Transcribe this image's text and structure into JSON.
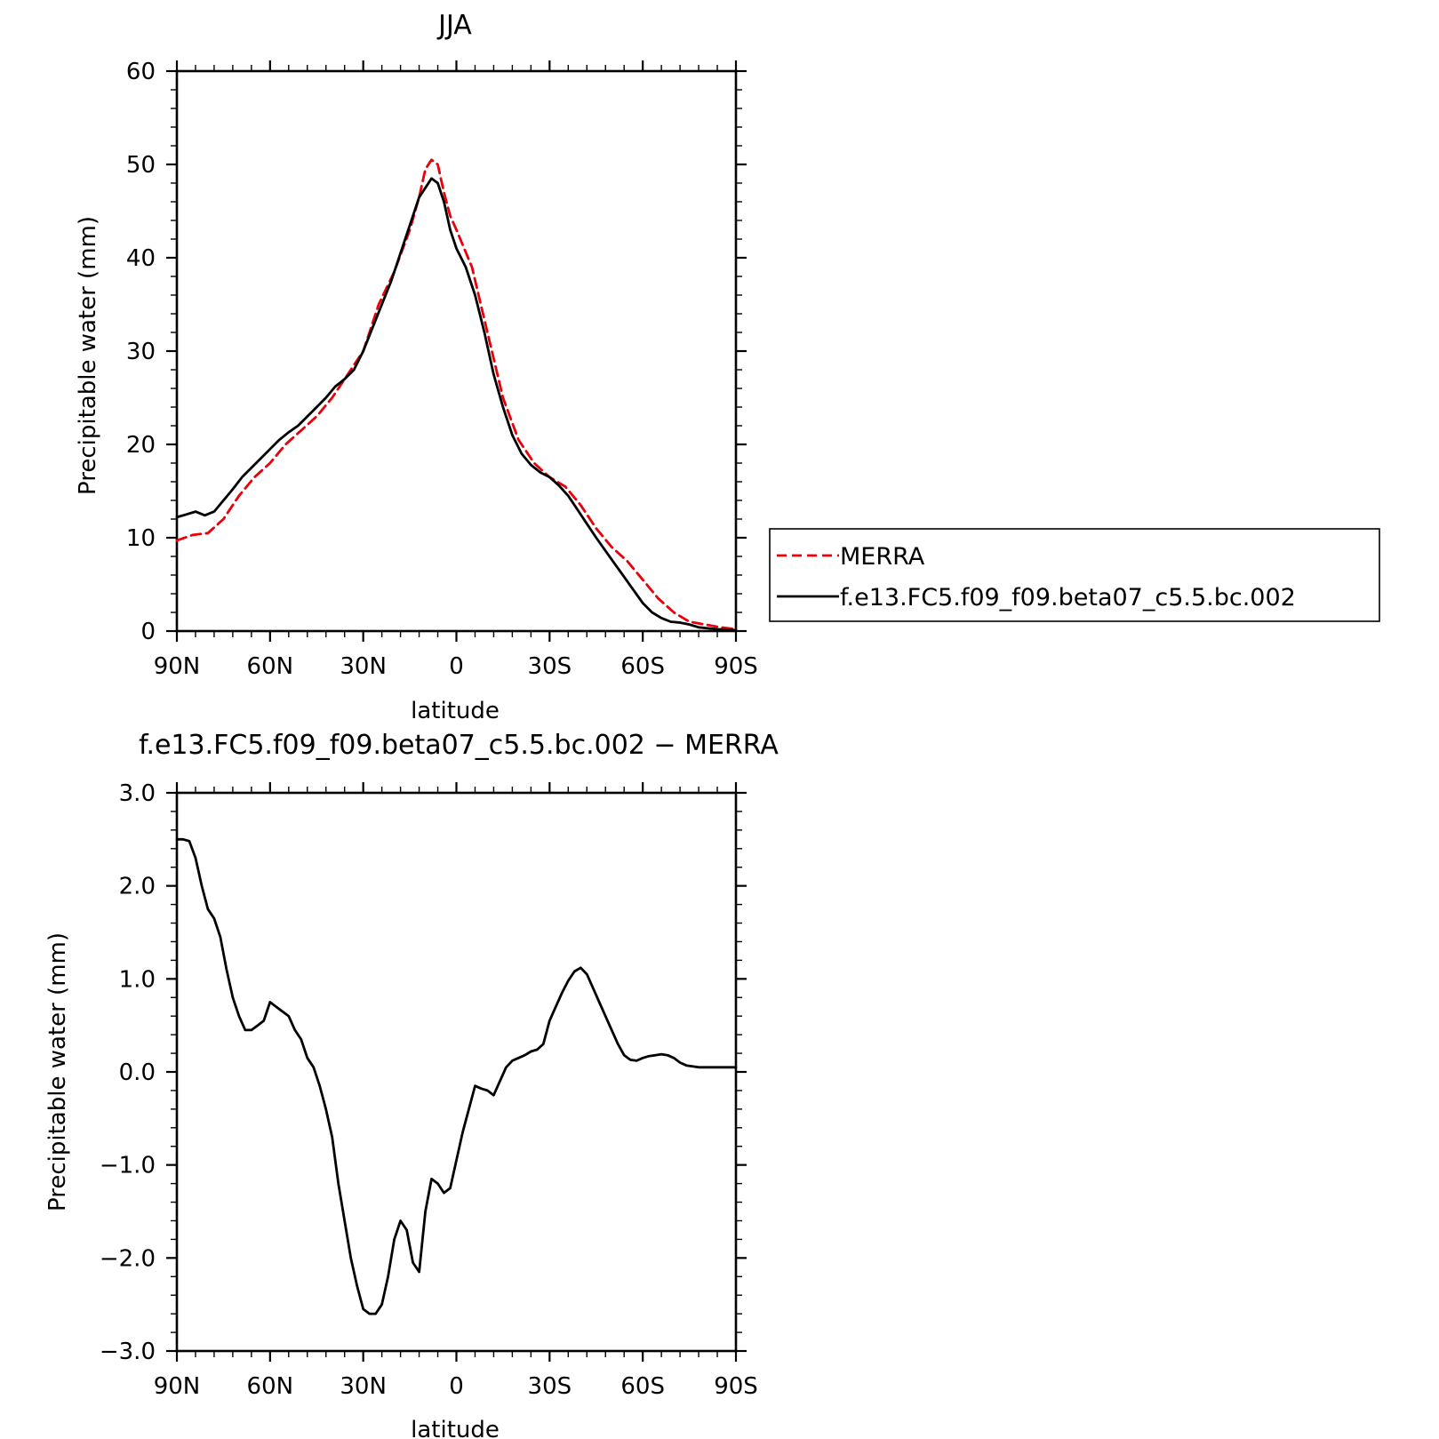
{
  "chart_data": [
    {
      "type": "line",
      "title": "JJA",
      "xlabel": "latitude",
      "ylabel": "Precipitable water (mm)",
      "xlim": [
        90,
        -90
      ],
      "ylim": [
        0,
        60
      ],
      "xticks": [
        90,
        60,
        30,
        0,
        -30,
        -60,
        -90
      ],
      "xtick_labels": [
        "90N",
        "60N",
        "30N",
        "0",
        "30S",
        "60S",
        "90S"
      ],
      "yticks": [
        0,
        10,
        20,
        30,
        40,
        50,
        60
      ],
      "ytick_labels": [
        "0",
        "10",
        "20",
        "30",
        "40",
        "50",
        "60"
      ],
      "grid": false,
      "legend": "right",
      "series": [
        {
          "name": "MERRA",
          "color": "#e8000b",
          "style": "dashed",
          "x": [
            90,
            85,
            80,
            75,
            70,
            65,
            60,
            55,
            50,
            45,
            40,
            35,
            30,
            25,
            20,
            15,
            12,
            10,
            8,
            6,
            4,
            2,
            0,
            -5,
            -10,
            -15,
            -20,
            -25,
            -30,
            -35,
            -40,
            -45,
            -50,
            -55,
            -60,
            -65,
            -70,
            -75,
            -80,
            -85,
            -90
          ],
          "y": [
            9.7,
            10.3,
            10.5,
            12.0,
            14.5,
            16.5,
            18.0,
            20.0,
            21.5,
            23.0,
            25.0,
            27.5,
            30.0,
            35.0,
            38.5,
            43.0,
            46.5,
            49.5,
            50.5,
            50.0,
            47.0,
            44.5,
            43.0,
            39.0,
            32.0,
            25.0,
            20.5,
            18.0,
            16.5,
            15.5,
            13.5,
            11.0,
            9.0,
            7.5,
            5.5,
            3.5,
            2.0,
            1.0,
            0.7,
            0.4,
            0.2
          ]
        },
        {
          "name": "f.e13.FC5.f09_f09.beta07_c5.5.bc.002",
          "color": "#000000",
          "style": "solid",
          "x": [
            90,
            87,
            84,
            81,
            78,
            75,
            72,
            69,
            66,
            63,
            60,
            57,
            54,
            51,
            48,
            45,
            42,
            39,
            36,
            33,
            30,
            27,
            24,
            21,
            18,
            15,
            12,
            10,
            8,
            6,
            4,
            2,
            0,
            -3,
            -6,
            -9,
            -12,
            -15,
            -18,
            -21,
            -24,
            -27,
            -30,
            -33,
            -36,
            -39,
            -42,
            -45,
            -48,
            -51,
            -54,
            -57,
            -60,
            -63,
            -66,
            -69,
            -72,
            -75,
            -78,
            -81,
            -84,
            -87,
            -90
          ],
          "y": [
            12.2,
            12.5,
            12.8,
            12.4,
            12.8,
            14.0,
            15.2,
            16.5,
            17.5,
            18.5,
            19.5,
            20.5,
            21.3,
            22.0,
            23.0,
            24.0,
            25.0,
            26.2,
            27.0,
            28.0,
            30.0,
            32.5,
            35.0,
            37.5,
            40.5,
            43.5,
            46.5,
            47.5,
            48.5,
            48.0,
            46.0,
            43.0,
            41.0,
            39.0,
            36.0,
            32.0,
            27.5,
            24.0,
            21.0,
            19.0,
            17.8,
            17.0,
            16.5,
            15.6,
            14.5,
            13.0,
            11.5,
            10.0,
            8.6,
            7.2,
            5.8,
            4.4,
            3.0,
            2.0,
            1.4,
            1.0,
            0.9,
            0.7,
            0.4,
            0.3,
            0.2,
            0.15,
            0.1
          ]
        }
      ]
    },
    {
      "type": "line",
      "title": "f.e13.FC5.f09_f09.beta07_c5.5.bc.002 − MERRA",
      "xlabel": "latitude",
      "ylabel": "Precipitable water (mm)",
      "xlim": [
        90,
        -90
      ],
      "ylim": [
        -3.0,
        3.0
      ],
      "xticks": [
        90,
        60,
        30,
        0,
        -30,
        -60,
        -90
      ],
      "xtick_labels": [
        "90N",
        "60N",
        "30N",
        "0",
        "30S",
        "60S",
        "90S"
      ],
      "yticks": [
        -3.0,
        -2.0,
        -1.0,
        0.0,
        1.0,
        2.0,
        3.0
      ],
      "ytick_labels": [
        "−3.0",
        "−2.0",
        "−1.0",
        "0.0",
        "1.0",
        "2.0",
        "3.0"
      ],
      "grid": false,
      "series": [
        {
          "color": "#000000",
          "style": "solid",
          "x": [
            90,
            88,
            86,
            84,
            82,
            80,
            78,
            76,
            74,
            72,
            70,
            68,
            66,
            64,
            62,
            60,
            58,
            56,
            54,
            52,
            50,
            48,
            46,
            44,
            42,
            40,
            38,
            36,
            34,
            32,
            30,
            28,
            26,
            24,
            22,
            20,
            18,
            16,
            14,
            12,
            10,
            8,
            6,
            4,
            2,
            0,
            -2,
            -4,
            -6,
            -8,
            -10,
            -12,
            -14,
            -16,
            -18,
            -20,
            -22,
            -24,
            -26,
            -28,
            -30,
            -32,
            -34,
            -36,
            -38,
            -40,
            -42,
            -44,
            -46,
            -48,
            -50,
            -52,
            -54,
            -56,
            -58,
            -60,
            -62,
            -64,
            -66,
            -68,
            -70,
            -72,
            -74,
            -76,
            -78,
            -80,
            -82,
            -84,
            -86,
            -88,
            -90
          ],
          "y": [
            2.5,
            2.5,
            2.48,
            2.3,
            2.0,
            1.75,
            1.65,
            1.45,
            1.1,
            0.8,
            0.6,
            0.45,
            0.45,
            0.5,
            0.55,
            0.75,
            0.7,
            0.65,
            0.6,
            0.45,
            0.35,
            0.15,
            0.05,
            -0.15,
            -0.4,
            -0.7,
            -1.2,
            -1.6,
            -2.0,
            -2.3,
            -2.55,
            -2.6,
            -2.6,
            -2.5,
            -2.2,
            -1.8,
            -1.6,
            -1.7,
            -2.05,
            -2.15,
            -1.5,
            -1.15,
            -1.2,
            -1.3,
            -1.25,
            -0.95,
            -0.65,
            -0.4,
            -0.15,
            -0.18,
            -0.2,
            -0.25,
            -0.1,
            0.05,
            0.12,
            0.15,
            0.18,
            0.22,
            0.24,
            0.3,
            0.55,
            0.7,
            0.85,
            0.98,
            1.08,
            1.12,
            1.05,
            0.9,
            0.75,
            0.6,
            0.45,
            0.3,
            0.18,
            0.13,
            0.12,
            0.15,
            0.17,
            0.18,
            0.19,
            0.18,
            0.15,
            0.1,
            0.07,
            0.06,
            0.05,
            0.05,
            0.05,
            0.05,
            0.05,
            0.05,
            0.05
          ]
        }
      ]
    }
  ]
}
